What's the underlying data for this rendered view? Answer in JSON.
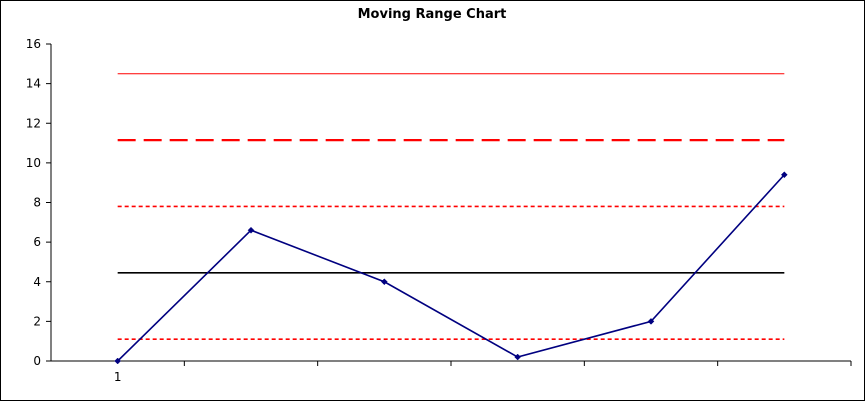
{
  "chart_data": {
    "type": "line",
    "title": "Moving Range Chart",
    "xlabel": "",
    "ylabel": "",
    "x_tick_labels": [
      "1"
    ],
    "ylim": [
      0,
      16
    ],
    "yticks": [
      0,
      2,
      4,
      6,
      8,
      10,
      12,
      14,
      16
    ],
    "grid": false,
    "legend": "none",
    "series": [
      {
        "values": [
          0,
          6.6,
          4.0,
          0.2,
          2.0,
          9.4
        ],
        "color": "#000080",
        "marker": "diamond"
      }
    ],
    "reference_lines": [
      {
        "value": 14.5,
        "color": "#ff0000",
        "style": "solid-thin"
      },
      {
        "value": 11.15,
        "color": "#ff0000",
        "style": "long-dash"
      },
      {
        "value": 7.8,
        "color": "#ff0000",
        "style": "short-dash"
      },
      {
        "value": 4.45,
        "color": "#000000",
        "style": "solid"
      },
      {
        "value": 1.1,
        "color": "#ff0000",
        "style": "short-dash"
      }
    ]
  }
}
